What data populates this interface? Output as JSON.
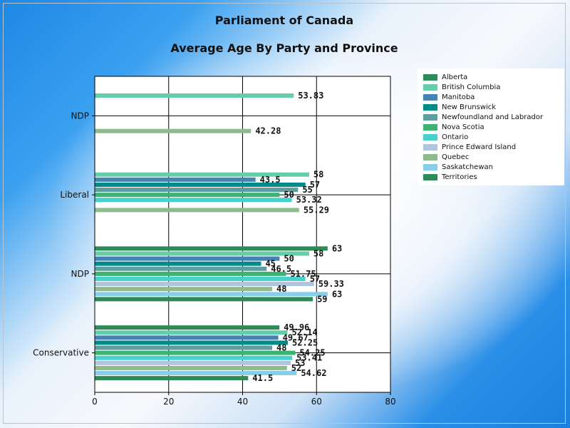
{
  "chart_data": {
    "type": "bar",
    "orientation": "horizontal",
    "title": "Parliament of Canada",
    "subtitle": "Average Age By Party and Province",
    "xlabel": "",
    "ylabel": "",
    "xlim": [
      0,
      80
    ],
    "x_ticks": [
      "0",
      "20",
      "40",
      "60",
      "80"
    ],
    "grid": true,
    "legend_position": "right",
    "categories": [
      "Conservative",
      "NDP",
      "Liberal",
      "NDP"
    ],
    "series": [
      {
        "name": "Alberta",
        "color": "#2e8b57",
        "values": [
          49.96,
          63,
          null,
          null
        ]
      },
      {
        "name": "British Columbia",
        "color": "#66cdaa",
        "values": [
          52.14,
          58,
          58,
          53.83
        ]
      },
      {
        "name": "Manitoba",
        "color": "#4682b4",
        "values": [
          49.67,
          50,
          43.5,
          null
        ]
      },
      {
        "name": "New Brunswick",
        "color": "#008b8b",
        "values": [
          52.25,
          45,
          57,
          null
        ]
      },
      {
        "name": "Newfoundland and Labrador",
        "color": "#5f9ea0",
        "values": [
          48,
          46.5,
          55,
          null
        ]
      },
      {
        "name": "Nova Scotia",
        "color": "#3cb371",
        "values": [
          54.25,
          51.75,
          50,
          null
        ]
      },
      {
        "name": "Ontario",
        "color": "#48d1cc",
        "values": [
          53.41,
          57,
          53.32,
          null
        ]
      },
      {
        "name": "Prince Edward Island",
        "color": "#b0c4de",
        "values": [
          53,
          59.33,
          null,
          null
        ]
      },
      {
        "name": "Quebec",
        "color": "#8fbc8f",
        "values": [
          52,
          48,
          55.29,
          42.28
        ]
      },
      {
        "name": "Saskatchewan",
        "color": "#87ceeb",
        "values": [
          54.62,
          63,
          null,
          null
        ]
      },
      {
        "name": "Territories",
        "color": "#2e8b57",
        "values": [
          41.5,
          59,
          null,
          null
        ]
      }
    ]
  }
}
